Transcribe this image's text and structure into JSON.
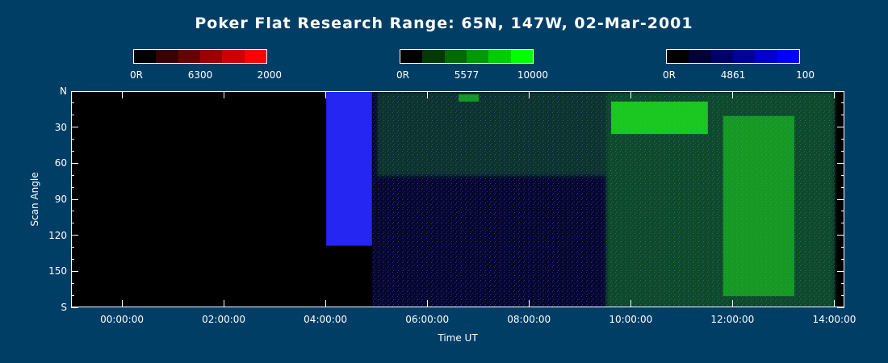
{
  "title": "Poker Flat Research Range: 65N, 147W, 02-Mar-2001",
  "colorbars": [
    {
      "name": "6300",
      "min_label": "0R",
      "mid_label": "6300",
      "max_label": "2000",
      "colors": [
        "#000000",
        "#3a0000",
        "#6a0000",
        "#9a0000",
        "#cc0000",
        "#ff0000"
      ]
    },
    {
      "name": "5577",
      "min_label": "0R",
      "mid_label": "5577",
      "max_label": "10000",
      "colors": [
        "#000000",
        "#003a00",
        "#006a00",
        "#009a00",
        "#00cc00",
        "#00ff00"
      ]
    },
    {
      "name": "4861",
      "min_label": "0R",
      "mid_label": "4861",
      "max_label": "100",
      "colors": [
        "#000000",
        "#00003a",
        "#00006a",
        "#00009a",
        "#0000cc",
        "#0000ff"
      ]
    }
  ],
  "chart_data": {
    "type": "heatmap",
    "title": "Poker Flat Research Range: 65N, 147W, 02-Mar-2001",
    "xlabel": "Time UT",
    "ylabel": "Scan Angle",
    "xlim_hours": [
      -1.0,
      14.2
    ],
    "ylim": [
      0,
      180
    ],
    "x_ticks": [
      {
        "hours": 0,
        "label": "00:00:00"
      },
      {
        "hours": 2,
        "label": "02:00:00"
      },
      {
        "hours": 4,
        "label": "04:00:00"
      },
      {
        "hours": 6,
        "label": "06:00:00"
      },
      {
        "hours": 8,
        "label": "08:00:00"
      },
      {
        "hours": 10,
        "label": "10:00:00"
      },
      {
        "hours": 12,
        "label": "12:00:00"
      },
      {
        "hours": 14,
        "label": "14:00:00"
      }
    ],
    "y_ticks": [
      {
        "value": 0,
        "label": "N"
      },
      {
        "value": 30,
        "label": "30"
      },
      {
        "value": 60,
        "label": "60"
      },
      {
        "value": 90,
        "label": "90"
      },
      {
        "value": 120,
        "label": "120"
      },
      {
        "value": 150,
        "label": "150"
      },
      {
        "value": 180,
        "label": "S"
      }
    ],
    "regions": [
      {
        "channel": "4861",
        "start_hours": 4.0,
        "end_hours": 4.9,
        "angle_from": 0,
        "angle_to": 128,
        "intensity": 0.95
      },
      {
        "channel": "4861",
        "start_hours": 4.9,
        "end_hours": 14.0,
        "angle_from": 0,
        "angle_to": 180,
        "intensity": 0.18
      },
      {
        "channel": "5577",
        "start_hours": 5.0,
        "end_hours": 9.5,
        "angle_from": 0,
        "angle_to": 70,
        "intensity": 0.2
      },
      {
        "channel": "5577",
        "start_hours": 6.6,
        "end_hours": 7.0,
        "angle_from": 2,
        "angle_to": 8,
        "intensity": 0.55
      },
      {
        "channel": "5577",
        "start_hours": 9.5,
        "end_hours": 14.0,
        "angle_from": 0,
        "angle_to": 180,
        "intensity": 0.3
      },
      {
        "channel": "5577",
        "start_hours": 9.6,
        "end_hours": 11.5,
        "angle_from": 8,
        "angle_to": 35,
        "intensity": 0.8
      },
      {
        "channel": "5577",
        "start_hours": 11.8,
        "end_hours": 13.2,
        "angle_from": 20,
        "angle_to": 170,
        "intensity": 0.5
      }
    ]
  }
}
